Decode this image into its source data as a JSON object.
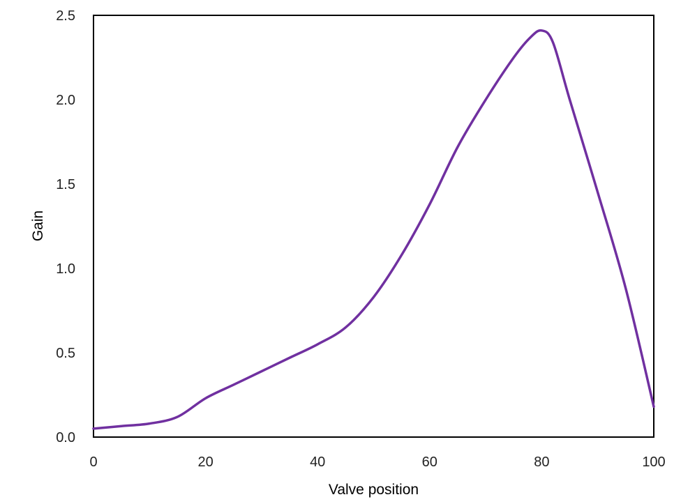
{
  "chart_data": {
    "type": "line",
    "xlabel": "Valve position",
    "ylabel": "Gain",
    "xlim": [
      0,
      100
    ],
    "ylim": [
      0,
      2.5
    ],
    "x_ticks": [
      0,
      20,
      40,
      60,
      80,
      100
    ],
    "x_tick_labels": [
      "0",
      "20",
      "40",
      "60",
      "80",
      "100"
    ],
    "y_ticks": [
      0,
      0.5,
      1.0,
      1.5,
      2.0,
      2.5
    ],
    "y_tick_labels": [
      "0.0",
      "0.5",
      "1.0",
      "1.5",
      "2.0",
      "2.5"
    ],
    "grid": false,
    "legend": "none",
    "series": [
      {
        "color": "#7030a0",
        "x": [
          0,
          5,
          10,
          15,
          20,
          25,
          30,
          35,
          40,
          45,
          50,
          55,
          60,
          65,
          70,
          75,
          78,
          80,
          82,
          85,
          90,
          95,
          100
        ],
        "y": [
          0.05,
          0.065,
          0.08,
          0.12,
          0.23,
          0.31,
          0.39,
          0.47,
          0.55,
          0.65,
          0.83,
          1.08,
          1.38,
          1.72,
          2.0,
          2.25,
          2.37,
          2.41,
          2.34,
          2.0,
          1.45,
          0.88,
          0.18
        ]
      }
    ]
  }
}
